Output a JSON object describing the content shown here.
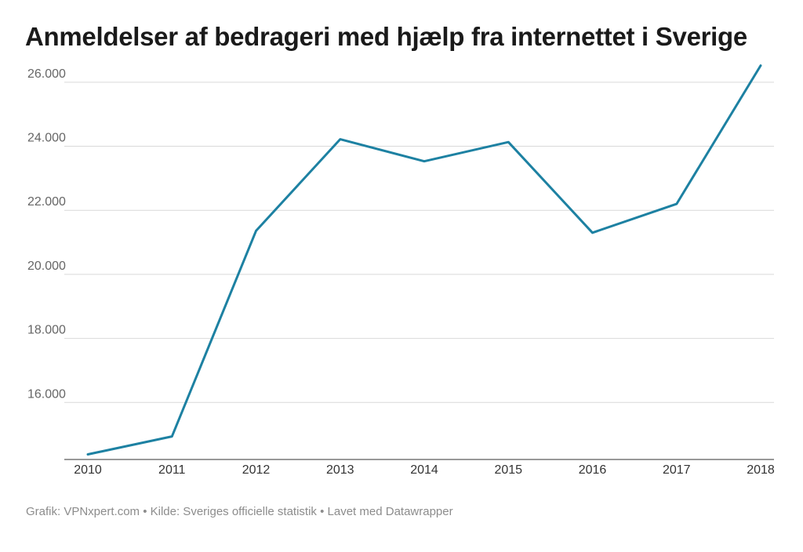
{
  "chart_data": {
    "type": "line",
    "title": "Anmeldelser af bedrageri med hjælp fra internettet i Sverige",
    "xlabel": "",
    "ylabel": "",
    "x": [
      "2010",
      "2011",
      "2012",
      "2013",
      "2014",
      "2015",
      "2016",
      "2017",
      "2018"
    ],
    "series": [
      {
        "values": [
          14380,
          14940,
          21360,
          24220,
          23530,
          24130,
          21300,
          22200,
          26520
        ],
        "color": "#1d81a2"
      }
    ],
    "ylim": [
      14000,
      27000
    ],
    "y_ticks": [
      16000,
      18000,
      20000,
      22000,
      24000,
      26000
    ],
    "y_tick_labels": [
      "16.000",
      "18.000",
      "20.000",
      "22.000",
      "24.000",
      "26.000"
    ],
    "grid": true,
    "legend": "none"
  },
  "footer": {
    "text": "Grafik: VPNxpert.com • Kilde: Sveriges officielle statistik • Lavet med Datawrapper"
  },
  "colors": {
    "line": "#1d81a2",
    "grid": "#d9d9d9",
    "axis": "#333333"
  }
}
